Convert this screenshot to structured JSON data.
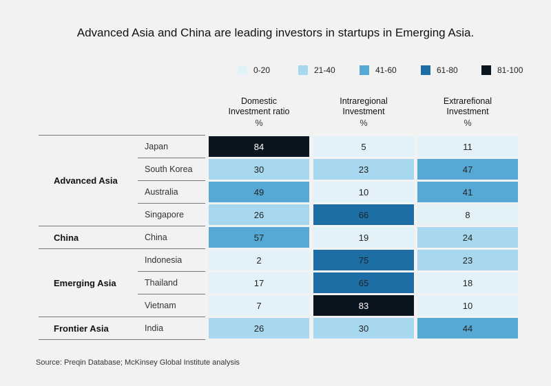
{
  "title": "Advanced Asia and China are leading investors in startups in Emerging Asia.",
  "source": "Source: Preqin Database; McKinsey Global Institute analysis",
  "legend": [
    {
      "label": "0-20",
      "color": "#e3f2f8"
    },
    {
      "label": "21-40",
      "color": "#a8d8f0"
    },
    {
      "label": "41-60",
      "color": "#55a9d4"
    },
    {
      "label": "61-80",
      "color": "#1e6ea6"
    },
    {
      "label": "81-100",
      "color": "#0b1520"
    }
  ],
  "chart_data": {
    "type": "heatmap",
    "title": "Advanced Asia and China are leading investors in startups in Emerging Asia.",
    "columns": [
      {
        "name": "Domestic Investment ratio",
        "unit": "%"
      },
      {
        "name": "Intraregional Investment",
        "unit": "%"
      },
      {
        "name": "Extrarefional Investment",
        "unit": "%"
      }
    ],
    "groups": [
      {
        "name": "Advanced Asia",
        "rows": [
          {
            "name": "Japan",
            "values": [
              84,
              5,
              11
            ]
          },
          {
            "name": "South Korea",
            "values": [
              30,
              23,
              47
            ]
          },
          {
            "name": "Australia",
            "values": [
              49,
              10,
              41
            ]
          },
          {
            "name": "Singapore",
            "values": [
              26,
              66,
              8
            ]
          }
        ]
      },
      {
        "name": "China",
        "rows": [
          {
            "name": "China",
            "values": [
              57,
              19,
              24
            ]
          }
        ]
      },
      {
        "name": "Emerging Asia",
        "rows": [
          {
            "name": "Indonesia",
            "values": [
              2,
              75,
              23
            ]
          },
          {
            "name": "Thailand",
            "values": [
              17,
              65,
              18
            ]
          },
          {
            "name": "Vietnam",
            "values": [
              7,
              83,
              10
            ]
          }
        ]
      },
      {
        "name": "Frontier Asia",
        "rows": [
          {
            "name": "India",
            "values": [
              26,
              30,
              44
            ]
          }
        ]
      }
    ]
  }
}
